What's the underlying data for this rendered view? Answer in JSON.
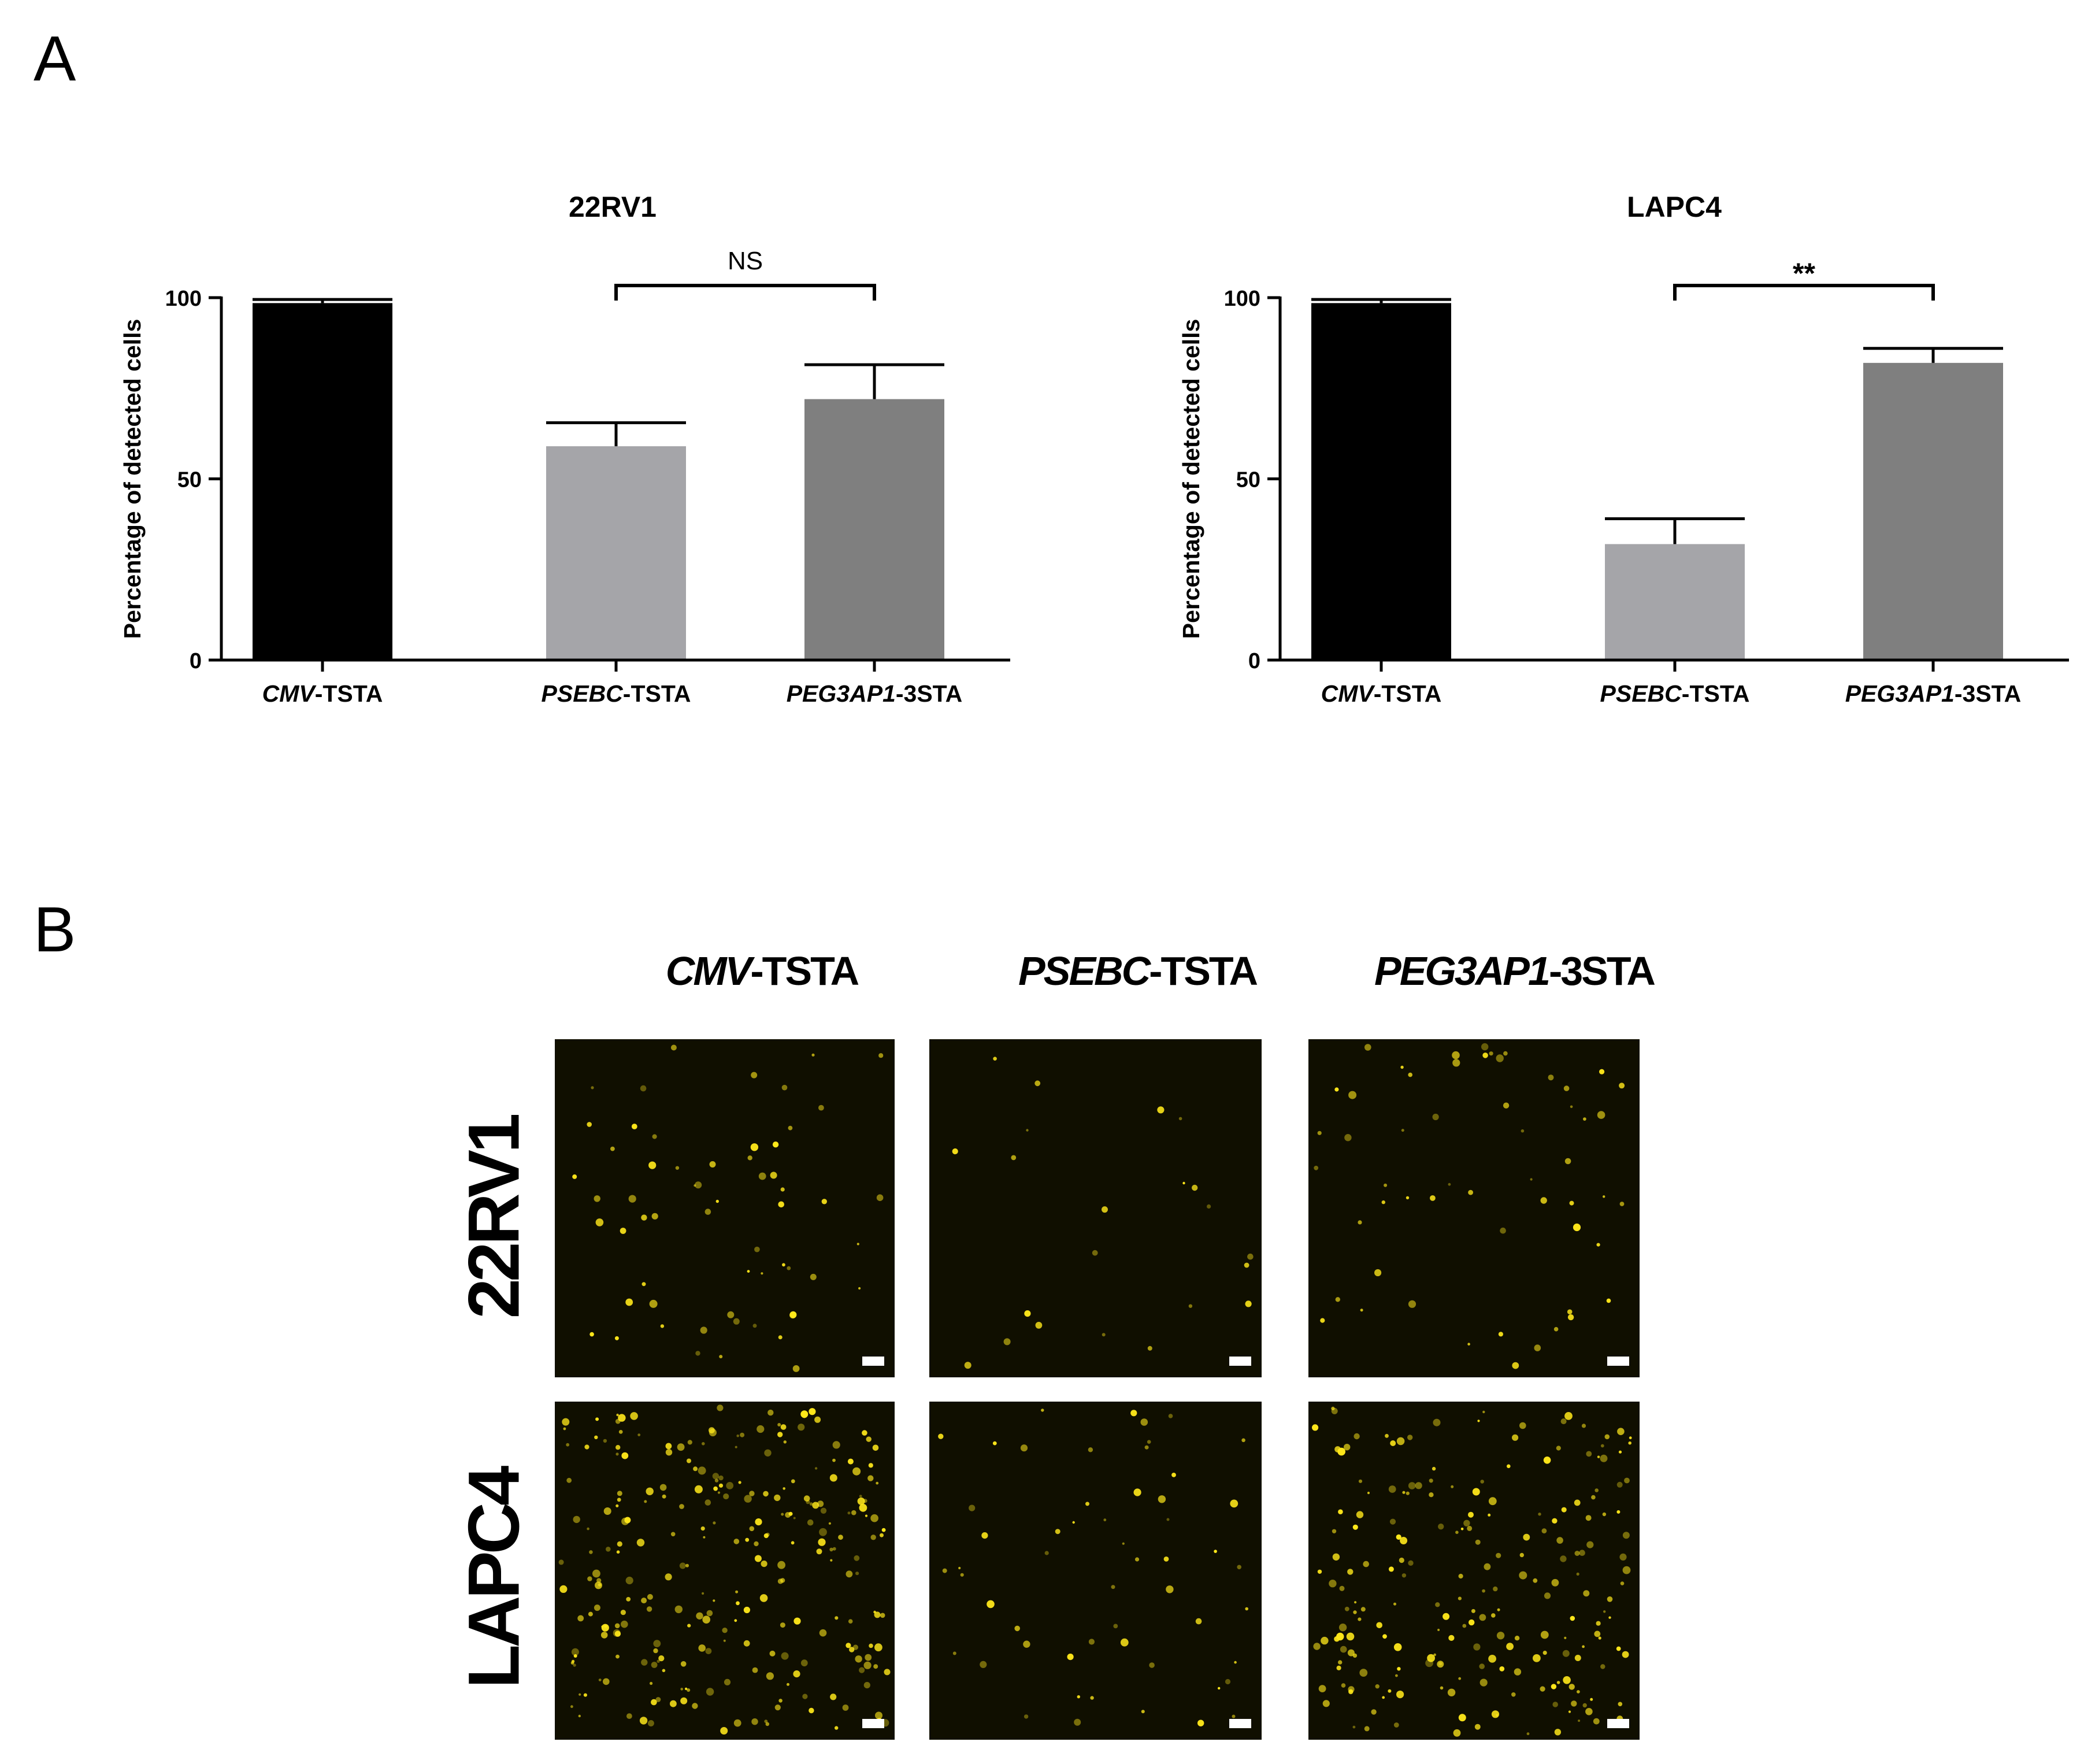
{
  "panel_a_letter": "A",
  "panel_b_letter": "B",
  "chart_data": [
    {
      "type": "bar",
      "title": "22RV1",
      "ylabel": "Percentage of detected  cells",
      "ylim": [
        0,
        100
      ],
      "yticks": [
        0,
        50,
        100
      ],
      "categories": [
        {
          "italic": "CMV",
          "plain": "-TSTA"
        },
        {
          "italic": "PSEBC",
          "plain": "-TSTA"
        },
        {
          "italic": "PEG3AP1",
          "plain": "-3STA"
        }
      ],
      "values": [
        98.5,
        59,
        72
      ],
      "errors": [
        1,
        6.5,
        9.5
      ],
      "colors": [
        "#000000",
        "#a5a5a9",
        "#7f7f7f"
      ],
      "significance": {
        "from": 1,
        "to": 2,
        "label": "NS"
      }
    },
    {
      "type": "bar",
      "title": "LAPC4",
      "ylabel": "Percentage of detected  cells",
      "ylim": [
        0,
        100
      ],
      "yticks": [
        0,
        50,
        100
      ],
      "categories": [
        {
          "italic": "CMV",
          "plain": "-TSTA"
        },
        {
          "italic": "PSEBC",
          "plain": "-TSTA"
        },
        {
          "italic": "PEG3AP1",
          "plain": "-3STA"
        }
      ],
      "values": [
        98.5,
        32,
        82
      ],
      "errors": [
        1,
        7,
        4
      ],
      "colors": [
        "#000000",
        "#a5a5a9",
        "#7f7f7f"
      ],
      "significance": {
        "from": 1,
        "to": 2,
        "label": "**"
      }
    }
  ],
  "images": {
    "columns": [
      {
        "italic": "CMV",
        "plain": "-TSTA"
      },
      {
        "italic": "PSEBC",
        "plain": "-TSTA"
      },
      {
        "italic": "PEG3AP1",
        "plain": "-3STA"
      }
    ],
    "rows": [
      "22RV1",
      "LAPC4"
    ],
    "cell_color": "#ffe81a",
    "background_color": "#100f00"
  }
}
